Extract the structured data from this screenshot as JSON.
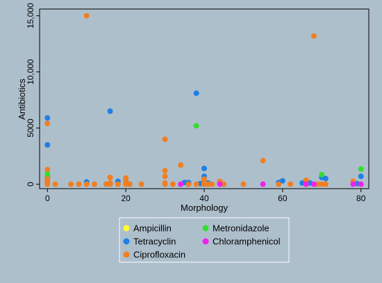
{
  "chart_data": {
    "type": "scatter",
    "title": "",
    "xlabel": "Morphology",
    "ylabel": "Antibiotics",
    "xlim": [
      -2,
      82
    ],
    "ylim": [
      -400,
      15600
    ],
    "x_ticks": [
      {
        "value": 0,
        "label": "0"
      },
      {
        "value": 20,
        "label": "20"
      },
      {
        "value": 40,
        "label": "40"
      },
      {
        "value": 60,
        "label": "60"
      },
      {
        "value": 80,
        "label": "80"
      }
    ],
    "y_ticks": [
      {
        "value": 0,
        "label": "0"
      },
      {
        "value": 5000,
        "label": "5000"
      },
      {
        "value": 10000,
        "label": "10,000"
      },
      {
        "value": 15000,
        "label": "15,000"
      }
    ],
    "grid": false,
    "legend_position": "bottom-center",
    "background_color": "#aebfcc",
    "plot_background_color": "#aebfcc",
    "series": [
      {
        "name": "Ampicillin",
        "color": "#ffff33",
        "points": [
          [
            0,
            0
          ],
          [
            38,
            0
          ]
        ]
      },
      {
        "name": "Tetracyclin",
        "color": "#1f7fe6",
        "points": [
          [
            0,
            5900
          ],
          [
            0,
            3500
          ],
          [
            0,
            600
          ],
          [
            10,
            200
          ],
          [
            16,
            6500
          ],
          [
            18,
            250
          ],
          [
            35,
            150
          ],
          [
            36,
            150
          ],
          [
            38,
            8100
          ],
          [
            39,
            50
          ],
          [
            40,
            1400
          ],
          [
            40,
            700
          ],
          [
            40,
            250
          ],
          [
            41,
            100
          ],
          [
            44,
            100
          ],
          [
            45,
            0
          ],
          [
            59,
            150
          ],
          [
            60,
            300
          ],
          [
            65,
            100
          ],
          [
            67,
            100
          ],
          [
            70,
            600
          ],
          [
            71,
            500
          ],
          [
            80,
            700
          ],
          [
            79,
            50
          ]
        ]
      },
      {
        "name": "Ciprofloxacin",
        "color": "#f07f22",
        "points": [
          [
            0,
            5400
          ],
          [
            0,
            1300
          ],
          [
            0,
            700
          ],
          [
            0,
            450
          ],
          [
            0,
            250
          ],
          [
            0,
            100
          ],
          [
            0,
            0
          ],
          [
            2,
            0
          ],
          [
            6,
            0
          ],
          [
            8,
            0
          ],
          [
            10,
            15000
          ],
          [
            10,
            0
          ],
          [
            12,
            0
          ],
          [
            15,
            0
          ],
          [
            16,
            600
          ],
          [
            16,
            100
          ],
          [
            16,
            0
          ],
          [
            18,
            0
          ],
          [
            20,
            550
          ],
          [
            20,
            250
          ],
          [
            20,
            0
          ],
          [
            21,
            0
          ],
          [
            24,
            0
          ],
          [
            30,
            4000
          ],
          [
            30,
            1200
          ],
          [
            30,
            700
          ],
          [
            30,
            100
          ],
          [
            30,
            0
          ],
          [
            32,
            0
          ],
          [
            34,
            1700
          ],
          [
            34,
            0
          ],
          [
            36,
            0
          ],
          [
            38,
            0
          ],
          [
            40,
            450
          ],
          [
            40,
            100
          ],
          [
            40,
            0
          ],
          [
            41,
            0
          ],
          [
            42,
            0
          ],
          [
            44,
            250
          ],
          [
            45,
            0
          ],
          [
            50,
            0
          ],
          [
            55,
            2100
          ],
          [
            59,
            0
          ],
          [
            62,
            0
          ],
          [
            66,
            350
          ],
          [
            66,
            0
          ],
          [
            68,
            13200
          ],
          [
            69,
            0
          ],
          [
            70,
            0
          ],
          [
            71,
            0
          ],
          [
            78,
            250
          ],
          [
            80,
            0
          ]
        ]
      },
      {
        "name": "Metronidazole",
        "color": "#33dd33",
        "points": [
          [
            0,
            900
          ],
          [
            38,
            5200
          ],
          [
            70,
            850
          ],
          [
            80,
            1350
          ]
        ]
      },
      {
        "name": "Chloramphenicol",
        "color": "#ee22ee",
        "points": [
          [
            34,
            0
          ],
          [
            44,
            0
          ],
          [
            55,
            0
          ],
          [
            66,
            0
          ],
          [
            68,
            0
          ],
          [
            78,
            0
          ],
          [
            80,
            0
          ]
        ]
      }
    ],
    "legend_layout": [
      [
        "Ampicillin",
        "Metronidazole"
      ],
      [
        "Tetracyclin",
        "Chloramphenicol"
      ],
      [
        "Ciprofloxacin"
      ]
    ]
  }
}
